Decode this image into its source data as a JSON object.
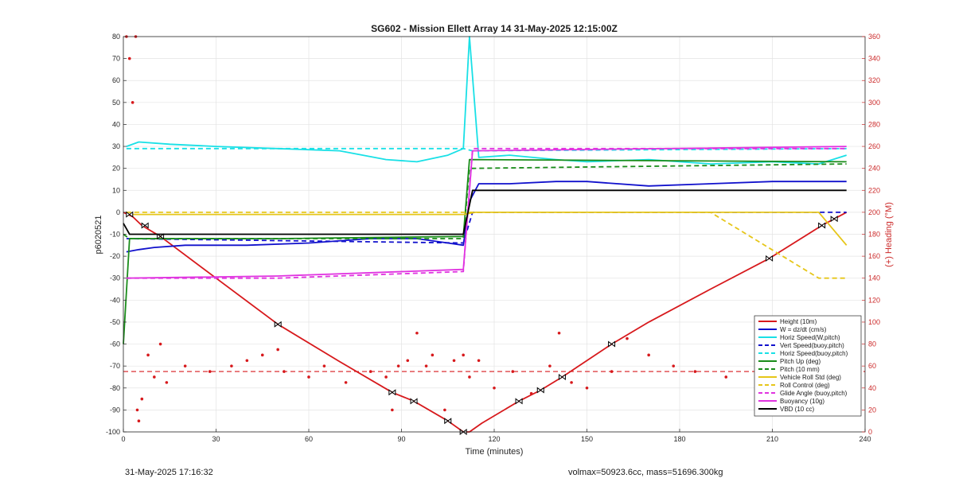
{
  "chart_data": {
    "type": "line",
    "title": "SG602 - Mission Ellett Array 14 31-May-2025 12:15:00Z",
    "xlabel": "Time (minutes)",
    "ylabel": "p6020521",
    "y2label": "(+) Heading (°M)",
    "xlim": [
      0,
      240
    ],
    "ylim": [
      -100,
      80
    ],
    "y2lim": [
      0,
      360
    ],
    "xticks": [
      0,
      30,
      60,
      90,
      120,
      150,
      180,
      210,
      240
    ],
    "yticks": [
      -100,
      -90,
      -80,
      -70,
      -60,
      -50,
      -40,
      -30,
      -20,
      -10,
      0,
      10,
      20,
      30,
      40,
      50,
      60,
      70,
      80
    ],
    "y2ticks": [
      0,
      20,
      40,
      60,
      80,
      100,
      120,
      140,
      160,
      180,
      200,
      220,
      240,
      260,
      280,
      300,
      320,
      340,
      360
    ],
    "grid": true,
    "legend_position": "bottom-right",
    "series": [
      {
        "name": "Height (10m)",
        "color": "#d7191c",
        "style": "solid",
        "x": [
          0,
          3,
          6,
          12,
          30,
          50,
          70,
          87,
          94,
          105,
          110,
          112,
          116,
          128,
          135,
          142,
          158,
          170,
          190,
          209,
          226,
          230,
          234
        ],
        "y": [
          0,
          -2,
          -6,
          -11,
          -30,
          -51,
          -68,
          -82,
          -86,
          -95,
          -100,
          -100,
          -96,
          -86,
          -81,
          -75,
          -60,
          -50,
          -35,
          -21,
          -6,
          -3,
          0
        ]
      },
      {
        "name": "W = dz/dt (cm/s)",
        "color": "#1111cc",
        "style": "solid",
        "x": [
          1,
          5,
          10,
          20,
          40,
          60,
          80,
          95,
          105,
          110,
          112,
          115,
          125,
          140,
          150,
          170,
          190,
          210,
          225,
          234
        ],
        "y": [
          -18,
          -17,
          -16,
          -15,
          -15,
          -14,
          -12,
          -12,
          -14,
          -15,
          5,
          13,
          13,
          14,
          14,
          12,
          13,
          14,
          14,
          14
        ]
      },
      {
        "name": "Horiz Speed(W,pitch)",
        "color": "#19e0e6",
        "style": "solid",
        "x": [
          1,
          5,
          15,
          30,
          50,
          70,
          85,
          95,
          105,
          110,
          112,
          115,
          125,
          140,
          150,
          170,
          190,
          210,
          225,
          234
        ],
        "y": [
          30,
          32,
          31,
          30,
          29,
          28,
          24,
          23,
          26,
          29,
          80,
          25,
          26,
          24,
          23,
          24,
          22,
          23,
          22,
          26
        ]
      },
      {
        "name": "Vert Speed(buoy,pitch)",
        "color": "#1111cc",
        "style": "dashed",
        "x": [
          1,
          110,
          113,
          234
        ],
        "y": [
          -12,
          -14,
          0,
          0
        ]
      },
      {
        "name": "Horiz Speed(buoy,pitch)",
        "color": "#19e0e6",
        "style": "dashed",
        "x": [
          1,
          110,
          113,
          234
        ],
        "y": [
          29,
          29,
          28,
          29
        ]
      },
      {
        "name": "Pitch Up (deg)",
        "color": "#1a8c1a",
        "style": "solid",
        "x": [
          0,
          2,
          50,
          110,
          112,
          234
        ],
        "y": [
          -60,
          -12,
          -12,
          -11,
          24,
          23
        ]
      },
      {
        "name": "Pitch (10 mm)",
        "color": "#1a8c1a",
        "style": "dashed",
        "x": [
          0,
          2,
          50,
          110,
          112,
          234
        ],
        "y": [
          -10,
          -12,
          -12,
          -12,
          20,
          22
        ]
      },
      {
        "name": "Vehicle Roll Std (deg)",
        "color": "#e6c619",
        "style": "solid",
        "x": [
          1,
          20,
          50,
          90,
          110,
          114,
          150,
          190,
          225,
          234
        ],
        "y": [
          -1,
          -1,
          -1,
          -1,
          -1,
          0,
          0,
          0,
          0,
          -15
        ]
      },
      {
        "name": "Roll Control (deg)",
        "color": "#e6c619",
        "style": "dashed",
        "x": [
          1,
          20,
          50,
          90,
          110,
          114,
          150,
          190,
          225,
          234
        ],
        "y": [
          0,
          0,
          0,
          0,
          0,
          0,
          0,
          0,
          -30,
          -30
        ]
      },
      {
        "name": "Glide Angle (buoy,pitch)",
        "color": "#e033e0",
        "style": "dashed",
        "x": [
          1,
          50,
          110,
          113,
          234
        ],
        "y": [
          -30,
          -30,
          -27,
          29,
          29
        ]
      },
      {
        "name": "Buoyancy (10g)",
        "color": "#e033e0",
        "style": "solid",
        "x": [
          1,
          50,
          110,
          113,
          234
        ],
        "y": [
          -30,
          -29,
          -26,
          28,
          30
        ]
      },
      {
        "name": "VBD (10 cc)",
        "color": "#000000",
        "style": "solid",
        "x": [
          0,
          2,
          110,
          113,
          234
        ],
        "y": [
          -5,
          -10,
          -10,
          10,
          10
        ]
      }
    ],
    "heading_series": {
      "axis": "right",
      "color": "#d7191c",
      "mean": 55,
      "x": [
        1,
        2,
        3,
        4,
        4.5,
        5,
        6,
        8,
        10,
        12,
        14,
        20,
        28,
        35,
        40,
        45,
        50,
        52,
        60,
        65,
        72,
        80,
        85,
        87,
        89,
        92,
        95,
        98,
        100,
        104,
        107,
        110,
        112,
        115,
        120,
        126,
        132,
        138,
        141,
        145,
        150,
        158,
        163,
        170,
        178,
        185,
        195,
        205,
        212,
        220,
        226,
        230,
        233
      ],
      "y": [
        360,
        340,
        300,
        360,
        20,
        10,
        30,
        70,
        50,
        80,
        45,
        60,
        55,
        60,
        65,
        70,
        75,
        55,
        50,
        60,
        45,
        55,
        50,
        20,
        60,
        65,
        90,
        60,
        70,
        20,
        65,
        70,
        50,
        65,
        40,
        55,
        35,
        60,
        90,
        45,
        40,
        55,
        85,
        70,
        60,
        55,
        50,
        60,
        45,
        50,
        65,
        85,
        75
      ]
    },
    "annotations": [
      {
        "x": 2,
        "y": -1
      },
      {
        "x": 7,
        "y": -6
      },
      {
        "x": 12,
        "y": -11
      },
      {
        "x": 50,
        "y": -51
      },
      {
        "x": 87,
        "y": -82
      },
      {
        "x": 94,
        "y": -86
      },
      {
        "x": 105,
        "y": -95
      },
      {
        "x": 110,
        "y": -100
      },
      {
        "x": 128,
        "y": -86
      },
      {
        "x": 135,
        "y": -81
      },
      {
        "x": 142,
        "y": -75
      },
      {
        "x": 158,
        "y": -60
      },
      {
        "x": 209,
        "y": -21
      },
      {
        "x": 226,
        "y": -6
      },
      {
        "x": 230,
        "y": -3
      }
    ]
  },
  "footer": {
    "timestamp": "31-May-2025 17:16:32",
    "volume_mass": "volmax=50923.6cc, mass=51696.300kg"
  }
}
